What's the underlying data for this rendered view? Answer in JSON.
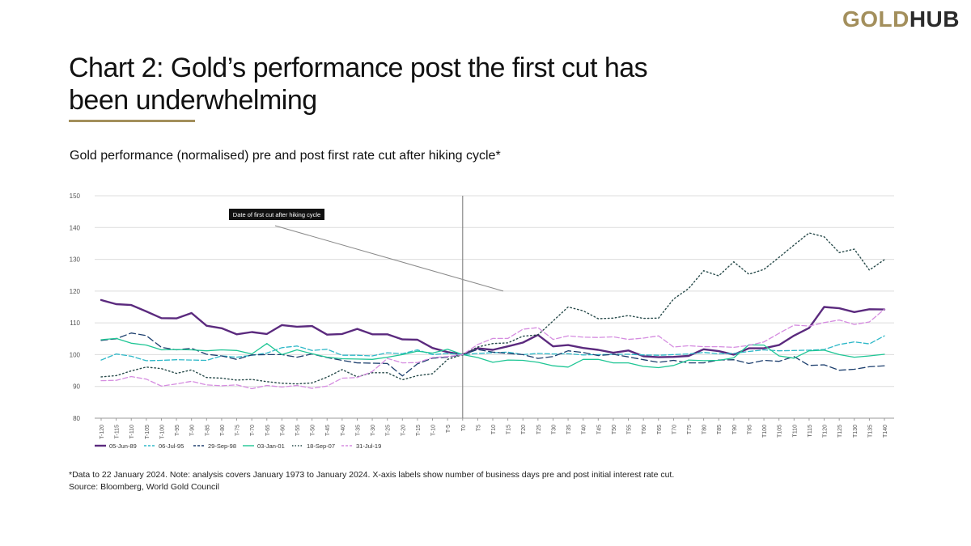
{
  "brand": {
    "part1": "GOLD",
    "part2": "HUB"
  },
  "title": "Chart 2: Gold’s performance post the first cut has been underwhelming",
  "subtitle": "Gold performance (normalised) pre and post first rate cut after hiking cycle*",
  "footnote": "*Data to 22 January 2024. Note: analysis covers January 1973 to January 2024. X-axis labels show number of business days pre and post initial interest rate cut.",
  "source": "Source: Bloomberg, World Gold Council",
  "chart_data": {
    "type": "line",
    "title": "",
    "xlabel": "",
    "ylabel": "",
    "ylim": [
      80,
      150
    ],
    "yticks": [
      80,
      90,
      100,
      110,
      120,
      130,
      140,
      150
    ],
    "grid": true,
    "legend_position": "bottom-left",
    "x": [
      "T-120",
      "T-115",
      "T-110",
      "T-105",
      "T-100",
      "T-95",
      "T-90",
      "T-85",
      "T-80",
      "T-75",
      "T-70",
      "T-65",
      "T-60",
      "T-55",
      "T-50",
      "T-45",
      "T-40",
      "T-35",
      "T-30",
      "T-25",
      "T-20",
      "T-15",
      "T-10",
      "T-5",
      "T0",
      "T5",
      "T10",
      "T15",
      "T20",
      "T25",
      "T30",
      "T35",
      "T40",
      "T45",
      "T50",
      "T55",
      "T60",
      "T65",
      "T70",
      "T75",
      "T80",
      "T85",
      "T90",
      "T95",
      "T100",
      "T105",
      "T110",
      "T115",
      "T120",
      "T125",
      "T130",
      "T135",
      "T140"
    ],
    "annotation": {
      "text": "Date of first cut after hiking cycle",
      "x": "T0"
    },
    "series": [
      {
        "name": "05-Jun-89",
        "color": "#5b2a7e",
        "style": "solid-thick",
        "values": [
          117.2,
          115.9,
          115.6,
          113.6,
          111.5,
          111.4,
          113.1,
          109.1,
          108.3,
          106.4,
          107.1,
          106.5,
          109.3,
          108.8,
          109,
          106.3,
          106.5,
          108.1,
          106.4,
          106.4,
          104.8,
          104.7,
          102.1,
          100.8,
          100,
          102,
          101.5,
          102.6,
          103.8,
          106.2,
          102.6,
          103,
          102.1,
          101.5,
          100.6,
          101.3,
          99.5,
          99.2,
          99.3,
          99.6,
          101.7,
          101.1,
          100,
          102,
          102,
          103,
          106,
          108.4,
          115,
          114.6,
          113.4,
          114.3,
          114.2
        ]
      },
      {
        "name": "06-Jul-95",
        "color": "#2eb8c8",
        "style": "dashed",
        "values": [
          98.3,
          100.2,
          99.5,
          98.1,
          98.2,
          98.4,
          98.3,
          98.2,
          99.6,
          99.2,
          99.8,
          100.5,
          102.2,
          102.7,
          101.3,
          101.7,
          99.8,
          99.8,
          99.6,
          100.6,
          100.3,
          101.5,
          100,
          100.4,
          100,
          100.4,
          100.6,
          100.8,
          100,
          100.4,
          100.2,
          100.3,
          99.9,
          100,
          100.1,
          100.1,
          99.9,
          99.8,
          100,
          100.2,
          100.7,
          100.3,
          100.4,
          101,
          101.5,
          101.2,
          101.3,
          101.4,
          101.6,
          103.2,
          104,
          103.4,
          105.9
        ]
      },
      {
        "name": "29-Sep-98",
        "color": "#1d3f6e",
        "style": "dashed-long",
        "values": [
          104.5,
          105,
          106.8,
          106,
          102.3,
          101.5,
          102,
          100.1,
          99.6,
          98.5,
          99.9,
          100,
          100,
          99.2,
          100.2,
          99.1,
          98.2,
          97.4,
          97.3,
          97.2,
          93.3,
          97.1,
          98.9,
          99.2,
          100,
          101.6,
          100.8,
          100.4,
          100,
          98.8,
          99.4,
          101.2,
          100.7,
          99.7,
          100.1,
          99.3,
          98.4,
          97.6,
          98.2,
          97.4,
          97.4,
          98.3,
          98.4,
          97.2,
          98.2,
          97.9,
          99.4,
          96.6,
          96.8,
          95.1,
          95.4,
          96.2,
          96.5
        ]
      },
      {
        "name": "03-Jan-01",
        "color": "#1fc695",
        "style": "solid",
        "values": [
          104.7,
          105.1,
          103.6,
          103,
          101.5,
          101.6,
          101.5,
          101.2,
          101.5,
          101.3,
          100.2,
          103.5,
          100,
          101.5,
          100.3,
          99.2,
          98.7,
          98.6,
          98.5,
          99.2,
          100,
          101.1,
          100.5,
          101.7,
          100,
          99.1,
          97.6,
          98.3,
          98.2,
          97.6,
          96.5,
          96.1,
          98.5,
          98.5,
          97.4,
          97.4,
          96.3,
          95.9,
          96.6,
          98.3,
          98.1,
          98.2,
          99,
          103.1,
          103,
          99.6,
          98.9,
          101.2,
          101.4,
          100,
          99.2,
          99.6,
          100.1
        ]
      },
      {
        "name": "18-Sep-07",
        "color": "#274a4a",
        "style": "dotted",
        "values": [
          93,
          93.4,
          94.9,
          96.1,
          95.6,
          94.1,
          95.2,
          92.8,
          92.6,
          92,
          92.2,
          91.5,
          91,
          90.8,
          91.1,
          92.9,
          95.3,
          93,
          94.3,
          94.3,
          92.1,
          93.4,
          94,
          98.5,
          100,
          102.4,
          103.5,
          103.7,
          105.8,
          106.2,
          110.6,
          115,
          113.8,
          111.3,
          111.5,
          112.3,
          111.4,
          111.5,
          117.5,
          120.8,
          126.4,
          124.8,
          129.2,
          125.3,
          126.8,
          130.6,
          134.5,
          138.3,
          137.1,
          132.1,
          133.2,
          126.6,
          129.9
        ]
      },
      {
        "name": "31-Jul-19",
        "color": "#d58ce0",
        "style": "dashed",
        "values": [
          91.8,
          91.9,
          93.1,
          92.3,
          90.1,
          90.8,
          91.6,
          90.5,
          90.2,
          90.5,
          89.3,
          90.3,
          89.8,
          90.3,
          89.4,
          90.1,
          92.6,
          92.8,
          94.7,
          98.8,
          97.4,
          97.5,
          99.1,
          99.4,
          100,
          103.2,
          105.1,
          105.1,
          108,
          108.5,
          104.8,
          105.9,
          105.5,
          105.4,
          105.6,
          104.8,
          105.2,
          105.9,
          102.4,
          102.8,
          102.5,
          102.5,
          102.3,
          102.9,
          104,
          106.7,
          109.3,
          109,
          110.1,
          110.9,
          109.5,
          110.3,
          114.3
        ]
      }
    ]
  }
}
